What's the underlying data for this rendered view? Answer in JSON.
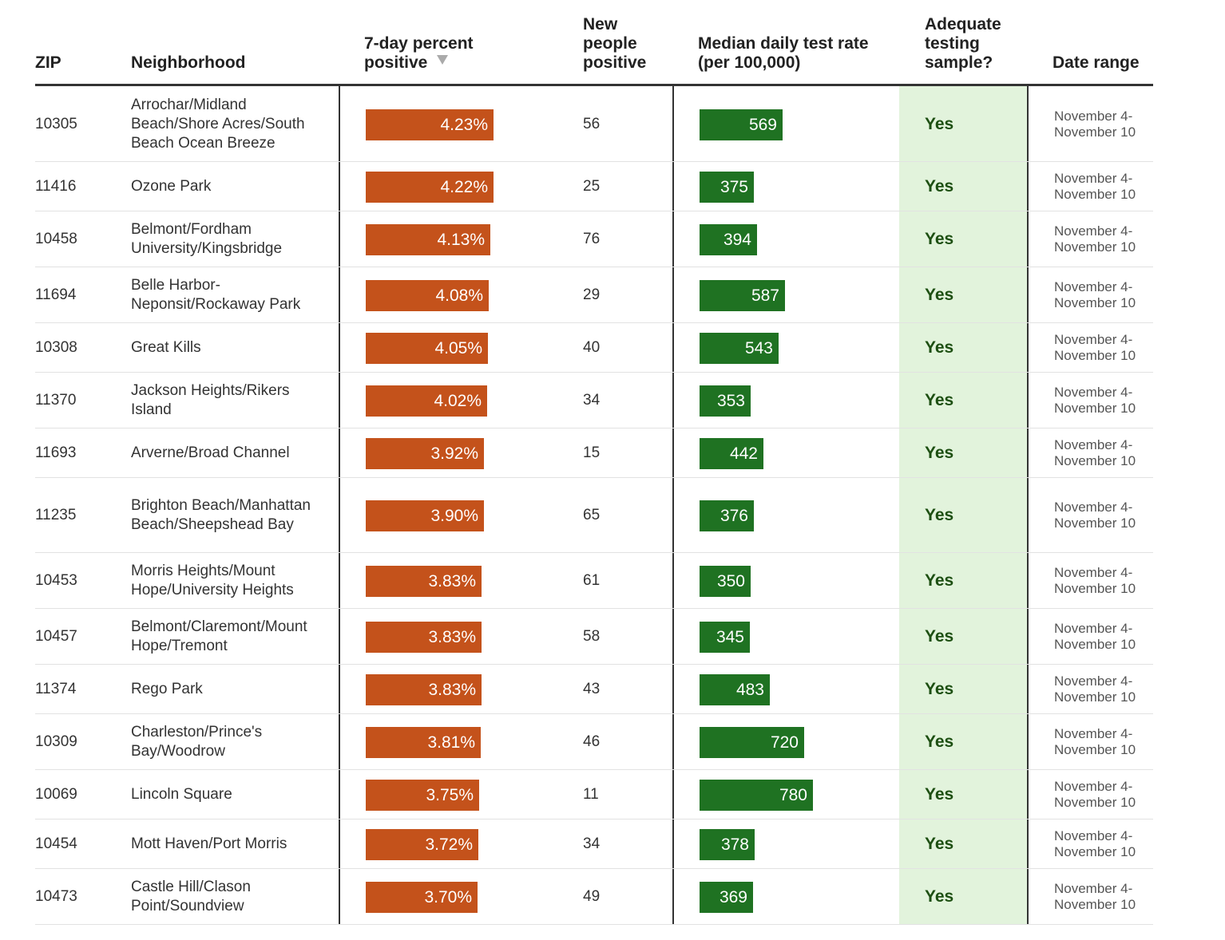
{
  "headers": {
    "zip": "ZIP",
    "neighborhood": "Neighborhood",
    "pct_positive": "7-day percent\npositive",
    "new_positive": "New\npeople\npositive",
    "test_rate": "Median daily test rate\n(per 100,000)",
    "adequate": "Adequate\ntesting\nsample?",
    "date_range": "Date range"
  },
  "sort": {
    "column": "pct_positive",
    "direction": "descending",
    "icon": "sort-down-triangle-icon"
  },
  "colors": {
    "pct_bar": "#c4521b",
    "rate_bar": "#1f7222",
    "adequate_bg": "#e2f3dc",
    "yes_text": "#1d4f12"
  },
  "rows": [
    {
      "zip": "10305",
      "neighborhood": "Arrochar/Midland Beach/Shore Acres/South Beach Ocean Breeze",
      "pct": 4.23,
      "pct_label": "4.23%",
      "new_positive": "56",
      "rate": 569,
      "rate_label": "569",
      "adequate": "Yes",
      "date_range": "November 4-\nNovember 10"
    },
    {
      "zip": "11416",
      "neighborhood": "Ozone Park",
      "pct": 4.22,
      "pct_label": "4.22%",
      "new_positive": "25",
      "rate": 375,
      "rate_label": "375",
      "adequate": "Yes",
      "date_range": "November 4-\nNovember 10"
    },
    {
      "zip": "10458",
      "neighborhood": "Belmont/Fordham University/Kingsbridge",
      "pct": 4.13,
      "pct_label": "4.13%",
      "new_positive": "76",
      "rate": 394,
      "rate_label": "394",
      "adequate": "Yes",
      "date_range": "November 4-\nNovember 10"
    },
    {
      "zip": "11694",
      "neighborhood": "Belle Harbor-Neponsit/Rockaway Park",
      "pct": 4.08,
      "pct_label": "4.08%",
      "new_positive": "29",
      "rate": 587,
      "rate_label": "587",
      "adequate": "Yes",
      "date_range": "November 4-\nNovember 10"
    },
    {
      "zip": "10308",
      "neighborhood": "Great Kills",
      "pct": 4.05,
      "pct_label": "4.05%",
      "new_positive": "40",
      "rate": 543,
      "rate_label": "543",
      "adequate": "Yes",
      "date_range": "November 4-\nNovember 10"
    },
    {
      "zip": "11370",
      "neighborhood": "Jackson Heights/Rikers Island",
      "pct": 4.02,
      "pct_label": "4.02%",
      "new_positive": "34",
      "rate": 353,
      "rate_label": "353",
      "adequate": "Yes",
      "date_range": "November 4-\nNovember 10"
    },
    {
      "zip": "11693",
      "neighborhood": "Arverne/Broad Channel",
      "pct": 3.92,
      "pct_label": "3.92%",
      "new_positive": "15",
      "rate": 442,
      "rate_label": "442",
      "adequate": "Yes",
      "date_range": "November 4-\nNovember 10"
    },
    {
      "zip": "11235",
      "neighborhood": "Brighton Beach/Manhattan Beach/Sheepshead Bay",
      "pct": 3.9,
      "pct_label": "3.90%",
      "new_positive": "65",
      "rate": 376,
      "rate_label": "376",
      "adequate": "Yes",
      "date_range": "November 4-\nNovember 10"
    },
    {
      "zip": "10453",
      "neighborhood": "Morris Heights/Mount Hope/University Heights",
      "pct": 3.83,
      "pct_label": "3.83%",
      "new_positive": "61",
      "rate": 350,
      "rate_label": "350",
      "adequate": "Yes",
      "date_range": "November 4-\nNovember 10"
    },
    {
      "zip": "10457",
      "neighborhood": "Belmont/Claremont/Mount Hope/Tremont",
      "pct": 3.83,
      "pct_label": "3.83%",
      "new_positive": "58",
      "rate": 345,
      "rate_label": "345",
      "adequate": "Yes",
      "date_range": "November 4-\nNovember 10"
    },
    {
      "zip": "11374",
      "neighborhood": "Rego Park",
      "pct": 3.83,
      "pct_label": "3.83%",
      "new_positive": "43",
      "rate": 483,
      "rate_label": "483",
      "adequate": "Yes",
      "date_range": "November 4-\nNovember 10"
    },
    {
      "zip": "10309",
      "neighborhood": "Charleston/Prince's Bay/Woodrow",
      "pct": 3.81,
      "pct_label": "3.81%",
      "new_positive": "46",
      "rate": 720,
      "rate_label": "720",
      "adequate": "Yes",
      "date_range": "November 4-\nNovember 10"
    },
    {
      "zip": "10069",
      "neighborhood": "Lincoln Square",
      "pct": 3.75,
      "pct_label": "3.75%",
      "new_positive": "11",
      "rate": 780,
      "rate_label": "780",
      "adequate": "Yes",
      "date_range": "November 4-\nNovember 10"
    },
    {
      "zip": "10454",
      "neighborhood": "Mott Haven/Port Morris",
      "pct": 3.72,
      "pct_label": "3.72%",
      "new_positive": "34",
      "rate": 378,
      "rate_label": "378",
      "adequate": "Yes",
      "date_range": "November 4-\nNovember 10"
    },
    {
      "zip": "10473",
      "neighborhood": "Castle Hill/Clason Point/Soundview",
      "pct": 3.7,
      "pct_label": "3.70%",
      "new_positive": "49",
      "rate": 369,
      "rate_label": "369",
      "adequate": "Yes",
      "date_range": "November 4-\nNovember 10"
    }
  ]
}
